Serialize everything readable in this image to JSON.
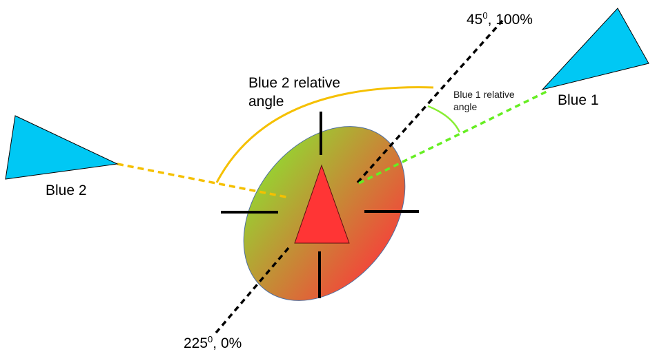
{
  "colors": {
    "triangle_blue": "#00c8f4",
    "red_triangle": "#ff3535",
    "ellipse_top": "#9acd32",
    "ellipse_bottom": "#f04a3a",
    "blue2_line": "#f5c000",
    "blue2_arc": "#f5c000",
    "blue1_line": "#66ee22",
    "blue1_arc": "#88ee33",
    "axis_line": "#000000"
  },
  "labels": {
    "top_axis_end": "45",
    "top_axis_sup": "0",
    "top_axis_value": ", 100%",
    "bottom_axis_end": "225",
    "bottom_axis_sup": "0",
    "bottom_axis_value": ", 0%",
    "blue1": "Blue 1",
    "blue2": "Blue 2",
    "blue2_relative_line1": "Blue 2 relative",
    "blue2_relative_line2": "angle",
    "blue1_relative_line1": "Blue 1 relative",
    "blue1_relative_line2": "angle"
  }
}
